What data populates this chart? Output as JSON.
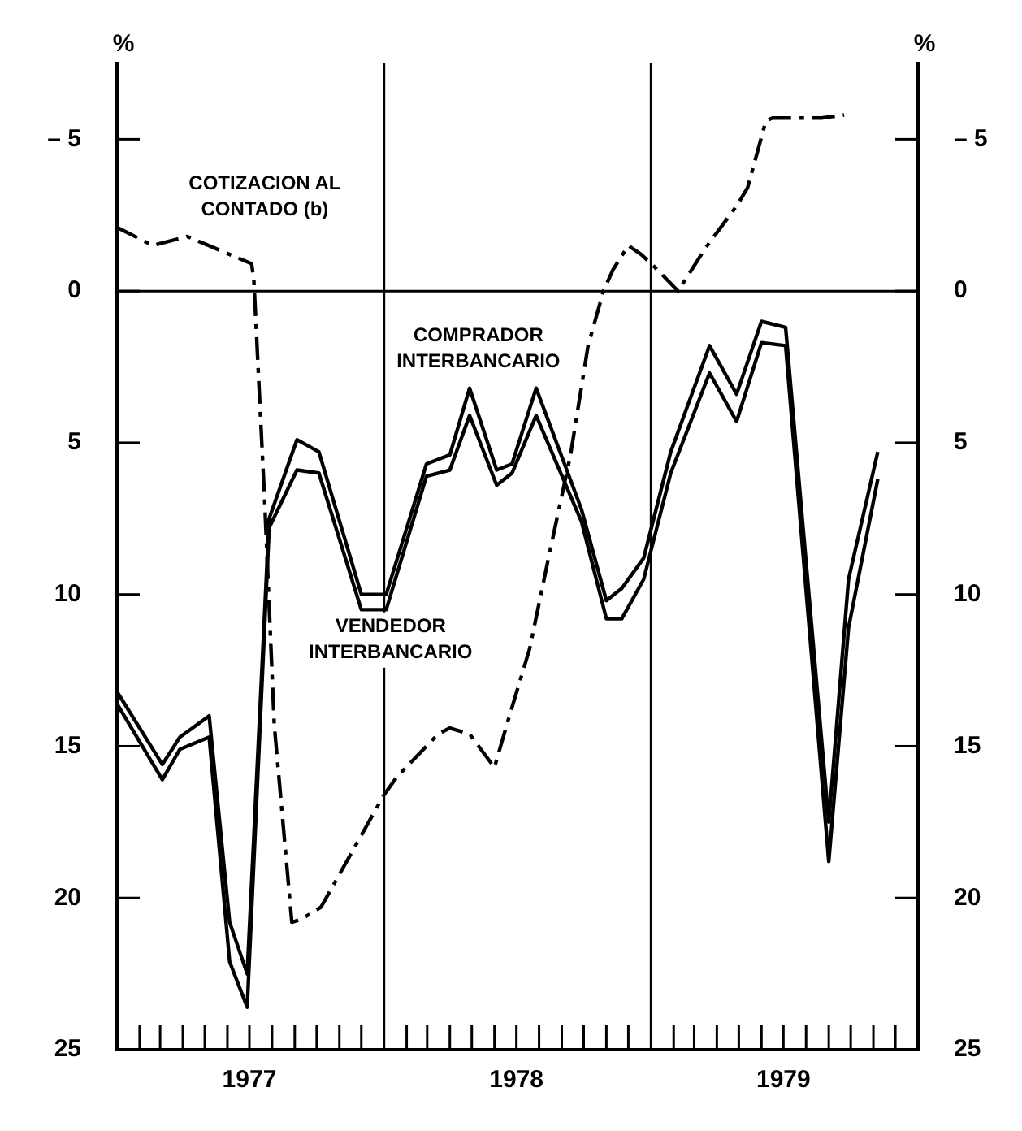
{
  "chart_data": {
    "type": "line",
    "ylabel": "%",
    "y2label": "%",
    "xlim": [
      "1977-01-01",
      "1980-01-01"
    ],
    "xticks": [
      {
        "value": "1977-02-01",
        "label": null
      },
      {
        "value": "1977-03-01",
        "label": null
      },
      {
        "value": "1977-04-01",
        "label": null
      },
      {
        "value": "1977-05-01",
        "label": null
      },
      {
        "value": "1977-06-01",
        "label": null
      },
      {
        "value": "1977-07-01",
        "label": "1977"
      },
      {
        "value": "1977-08-01",
        "label": null
      },
      {
        "value": "1977-09-01",
        "label": null
      },
      {
        "value": "1977-10-01",
        "label": null
      },
      {
        "value": "1977-11-01",
        "label": null
      },
      {
        "value": "1977-12-01",
        "label": null
      },
      {
        "value": "1978-02-01",
        "label": null
      },
      {
        "value": "1978-03-01",
        "label": null
      },
      {
        "value": "1978-04-01",
        "label": null
      },
      {
        "value": "1978-05-01",
        "label": null
      },
      {
        "value": "1978-06-01",
        "label": null
      },
      {
        "value": "1978-07-01",
        "label": "1978"
      },
      {
        "value": "1978-08-01",
        "label": null
      },
      {
        "value": "1978-09-01",
        "label": null
      },
      {
        "value": "1978-10-01",
        "label": null
      },
      {
        "value": "1978-11-01",
        "label": null
      },
      {
        "value": "1978-12-01",
        "label": null
      },
      {
        "value": "1979-02-01",
        "label": null
      },
      {
        "value": "1979-03-01",
        "label": null
      },
      {
        "value": "1979-04-01",
        "label": null
      },
      {
        "value": "1979-05-01",
        "label": null
      },
      {
        "value": "1979-06-01",
        "label": null
      },
      {
        "value": "1979-07-01",
        "label": "1979"
      },
      {
        "value": "1979-08-01",
        "label": null
      },
      {
        "value": "1979-09-01",
        "label": null
      },
      {
        "value": "1979-10-01",
        "label": null
      },
      {
        "value": "1979-11-01",
        "label": null
      },
      {
        "value": "1979-12-01",
        "label": null
      }
    ],
    "ylim": [
      25,
      -7.5
    ],
    "yticks": [
      {
        "value": -5,
        "label": "– 5"
      },
      0,
      5,
      10,
      15,
      20,
      25
    ],
    "y2lim": [
      25,
      -7.5
    ],
    "y2ticks": [
      {
        "value": -5,
        "label": "– 5"
      },
      0,
      5,
      10,
      15,
      20,
      25
    ],
    "series": [
      {
        "name": "COTIZACION AL CONTADO (b)",
        "color": "#000000",
        "line_style": "dashed",
        "x": [
          "1977-01-01",
          "1977-02-19",
          "1977-04-07",
          "1977-07-04",
          "1977-07-07",
          "1977-07-22",
          "1977-08-04",
          "1977-08-28",
          "1977-09-10",
          "1977-10-07",
          "1978-01-01",
          "1978-01-19",
          "1978-03-16",
          "1978-04-01",
          "1978-04-28",
          "1978-06-01",
          "1978-06-19",
          "1978-07-19",
          "1978-08-13",
          "1978-09-13",
          "1978-10-07",
          "1978-10-28",
          "1978-11-10",
          "1978-12-01",
          "1978-12-19",
          "1979-01-10",
          "1979-02-07",
          "1979-03-16",
          "1979-04-28",
          "1979-05-13",
          "1979-06-07",
          "1979-06-16",
          "1979-08-22",
          "1979-09-22"
        ],
        "values": [
          -2.1,
          -1.5,
          -1.8,
          -0.9,
          -0.4,
          7.0,
          14.3,
          20.8,
          20.7,
          20.3,
          16.6,
          16.0,
          14.6,
          14.4,
          14.6,
          15.7,
          14.2,
          11.8,
          8.9,
          5.4,
          1.8,
          0,
          -0.7,
          -1.5,
          -1.2,
          -0.7,
          0,
          -1.4,
          -2.8,
          -3.4,
          -5.6,
          -5.7,
          -5.7,
          -5.8
        ]
      },
      {
        "name": "COMPRADOR INTERBANCARIO",
        "color": "#000000",
        "line_style": "solid",
        "x": [
          "1977-01-01",
          "1977-03-04",
          "1977-03-28",
          "1977-05-07",
          "1977-06-04",
          "1977-06-28",
          "1977-07-28",
          "1977-09-04",
          "1977-10-04",
          "1977-12-01",
          "1978-01-04",
          "1978-02-28",
          "1978-04-01",
          "1978-04-28",
          "1978-06-04",
          "1978-06-25",
          "1978-07-28",
          "1978-09-28",
          "1978-11-01",
          "1978-11-22",
          "1978-12-22",
          "1979-01-28",
          "1979-03-22",
          "1979-04-28",
          "1979-06-01",
          "1979-07-04",
          "1979-09-01",
          "1979-09-28",
          "1979-11-07"
        ],
        "values": [
          13.2,
          15.6,
          14.7,
          14.0,
          20.8,
          22.5,
          7.5,
          4.9,
          5.3,
          10.0,
          10.0,
          5.7,
          5.4,
          3.2,
          5.9,
          5.7,
          3.2,
          7.2,
          10.2,
          9.8,
          8.8,
          5.3,
          1.8,
          3.4,
          1.0,
          1.2,
          17.5,
          9.5,
          5.3
        ]
      },
      {
        "name": "VENDEDOR INTERBANCARIO",
        "color": "#000000",
        "line_style": "solid",
        "x": [
          "1977-01-01",
          "1977-03-04",
          "1977-03-28",
          "1977-05-07",
          "1977-06-04",
          "1977-06-28",
          "1977-07-28",
          "1977-09-04",
          "1977-10-04",
          "1977-12-01",
          "1978-01-04",
          "1978-02-28",
          "1978-04-01",
          "1978-04-28",
          "1978-06-04",
          "1978-06-25",
          "1978-07-28",
          "1978-09-28",
          "1978-11-01",
          "1978-11-22",
          "1978-12-22",
          "1979-01-28",
          "1979-03-22",
          "1979-04-28",
          "1979-06-01",
          "1979-07-04",
          "1979-09-01",
          "1979-09-28",
          "1979-11-07"
        ],
        "values": [
          13.6,
          16.1,
          15.1,
          14.7,
          22.1,
          23.6,
          7.8,
          5.9,
          6.0,
          10.5,
          10.5,
          6.1,
          5.9,
          4.1,
          6.4,
          6.0,
          4.1,
          7.6,
          10.8,
          10.8,
          9.5,
          6.0,
          2.7,
          4.3,
          1.7,
          1.8,
          18.8,
          11.1,
          6.2
        ]
      }
    ],
    "ref_lines": [
      {
        "axis": "x",
        "value": "1978-01-01",
        "label": null
      },
      {
        "axis": "x",
        "value": "1979-01-01",
        "label": null
      },
      {
        "axis": "y",
        "value": 0,
        "label": null
      }
    ],
    "grid": false,
    "legend": false,
    "marker": "none"
  }
}
